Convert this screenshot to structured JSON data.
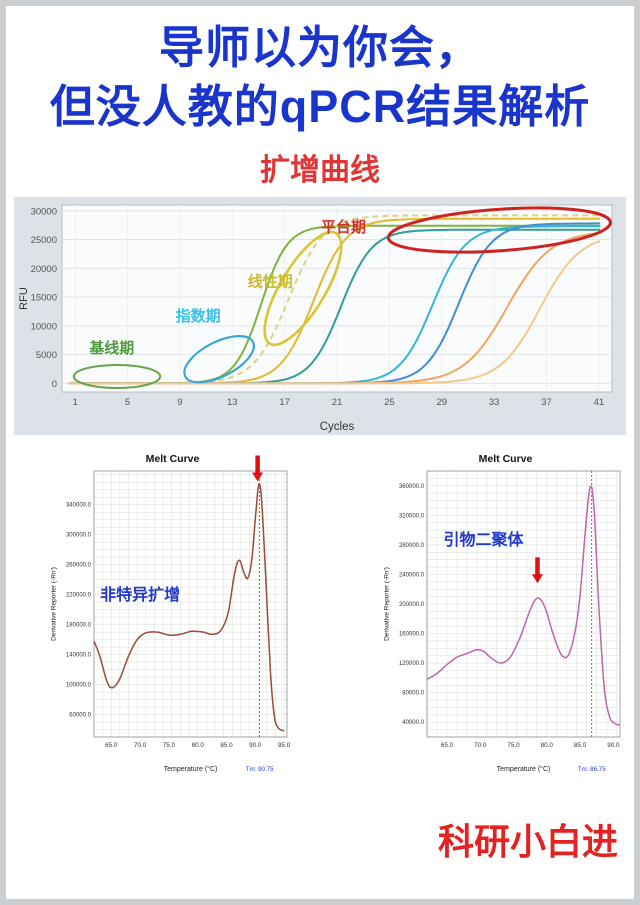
{
  "page": {
    "title_line1": "导师以为你会，",
    "title_line2": "但没人教的qPCR结果解析",
    "section_label": "扩增曲线",
    "footer_label": "科研小白进"
  },
  "colors": {
    "title_blue": "#1a35cc",
    "section_red": "#e03535",
    "footer_red": "#e42222",
    "note_blue": "#2238c8",
    "arrow_red": "#dd1111",
    "page_border": "#cbced1"
  },
  "chart_data": [
    {
      "id": "amplification",
      "type": "line",
      "title": "扩增曲线",
      "xlabel": "Cycles",
      "ylabel": "RFU",
      "xlim": [
        0,
        42
      ],
      "ylim": [
        -1500,
        31000
      ],
      "xticks": [
        1,
        5,
        9,
        13,
        17,
        21,
        25,
        29,
        33,
        37,
        41
      ],
      "yticks": [
        0,
        5000,
        10000,
        15000,
        20000,
        25000,
        30000
      ],
      "grid": true,
      "series": [
        {
          "name": "green",
          "color": "#7fb23f",
          "ct": 15.2,
          "plateau": 27400,
          "k": 1.0
        },
        {
          "name": "pale-yellow",
          "color": "#ddd37a",
          "ct": 17.3,
          "plateau": 29200,
          "k": 0.75,
          "dash": "6 4"
        },
        {
          "name": "yellow",
          "color": "#e3b92e",
          "ct": 19.2,
          "plateau": 28600,
          "k": 0.8
        },
        {
          "name": "teal",
          "color": "#2e9e96",
          "ct": 21.3,
          "plateau": 26700,
          "k": 0.85
        },
        {
          "name": "cyan",
          "color": "#35b5d8",
          "ct": 28.3,
          "plateau": 27300,
          "k": 0.8
        },
        {
          "name": "blue",
          "color": "#3f8fd2",
          "ct": 30.3,
          "plateau": 27800,
          "k": 0.8
        },
        {
          "name": "orange",
          "color": "#eda75f",
          "ct": 34.0,
          "plateau": 26500,
          "k": 0.6
        },
        {
          "name": "light-orange",
          "color": "#f2c98b",
          "ct": 36.5,
          "plateau": 26000,
          "k": 0.65
        }
      ],
      "phases": [
        {
          "label": "基线期",
          "color": "#4e9a3c",
          "text_x": 3.8,
          "text_y": 5300,
          "ellipse": {
            "cx": 4.2,
            "cy": 1200,
            "rx": 3.3,
            "ry": 2000,
            "rot": 0
          },
          "ellipse_color": "#6aa34a",
          "stroke": 2
        },
        {
          "label": "指数期",
          "color": "#38c2e8",
          "text_x": 10.4,
          "text_y": 10800,
          "ellipse": {
            "cx": 12.0,
            "cy": 4200,
            "rx": 2.9,
            "ry": 3000,
            "rot": -27
          },
          "ellipse_color": "#3aa6d6",
          "stroke": 2.2
        },
        {
          "label": "线性期",
          "color": "#c9bc2a",
          "text_x": 15.9,
          "text_y": 16800,
          "ellipse": {
            "cx": 18.4,
            "cy": 16500,
            "rx": 1.7,
            "ry": 11200,
            "rot": 31
          },
          "ellipse_color": "#d9c531",
          "stroke": 2.6
        },
        {
          "label": "平台期",
          "color": "#d93025",
          "text_x": 21.5,
          "text_y": 26300,
          "ellipse": {
            "cx": 33.4,
            "cy": 26650,
            "rx": 8.5,
            "ry": 3600,
            "rot": -4
          },
          "ellipse_color": "#cc2222",
          "stroke": 3
        }
      ]
    },
    {
      "id": "melt-left",
      "type": "line",
      "title": "Melt Curve",
      "xlabel": "Temperature (°C)",
      "ylabel": "Derivative Reporter (-Rn')",
      "xlim": [
        62,
        95.5
      ],
      "ylim": [
        30000,
        385000
      ],
      "xticks": [
        65,
        70,
        75,
        80,
        85,
        90,
        95
      ],
      "yticks": [
        60000,
        100000,
        140000,
        180000,
        220000,
        260000,
        300000,
        340000
      ],
      "grid_minor": {
        "x": 1.5,
        "y": 10000
      },
      "color": "#9a4a38",
      "tm": 90.75,
      "tm_label": "Tm: 90.75",
      "note": {
        "text": "非特异扩增",
        "x": 70.0,
        "y": 213000
      },
      "arrow": {
        "x": 90.4,
        "tip_y": 371000
      },
      "points": [
        [
          62,
          158000
        ],
        [
          63,
          138000
        ],
        [
          64.3,
          103000
        ],
        [
          65.3,
          96000
        ],
        [
          66.5,
          108000
        ],
        [
          68,
          138000
        ],
        [
          69.5,
          160000
        ],
        [
          71,
          169000
        ],
        [
          73,
          170000
        ],
        [
          75,
          166000
        ],
        [
          77,
          167000
        ],
        [
          79,
          171000
        ],
        [
          81,
          170000
        ],
        [
          82.5,
          167000
        ],
        [
          84,
          172000
        ],
        [
          85.3,
          196000
        ],
        [
          86.4,
          248000
        ],
        [
          87.2,
          266000
        ],
        [
          88,
          250000
        ],
        [
          88.7,
          242000
        ],
        [
          89.4,
          268000
        ],
        [
          90.1,
          330000
        ],
        [
          90.6,
          367000
        ],
        [
          91.1,
          345000
        ],
        [
          91.8,
          245000
        ],
        [
          92.6,
          120000
        ],
        [
          93.3,
          58000
        ],
        [
          94,
          42000
        ],
        [
          95,
          38000
        ]
      ]
    },
    {
      "id": "melt-right",
      "type": "line",
      "title": "Melt Curve",
      "xlabel": "Temperature (°C)",
      "ylabel": "Derivative Reporter (-Rn')",
      "xlim": [
        62,
        91
      ],
      "ylim": [
        20000,
        380000
      ],
      "xticks": [
        65,
        70,
        75,
        80,
        85,
        90
      ],
      "yticks": [
        40000,
        80000,
        120000,
        160000,
        200000,
        240000,
        280000,
        320000,
        360000
      ],
      "grid_minor": {
        "x": 1.5,
        "y": 10000
      },
      "color": "#c263ad",
      "tm": 86.75,
      "tm_label": "Tm: 86.75",
      "note": {
        "text": "引物二聚体",
        "x": 70.5,
        "y": 280000
      },
      "arrow": {
        "x": 78.6,
        "tip_y": 228000
      },
      "points": [
        [
          62,
          98000
        ],
        [
          63.5,
          106000
        ],
        [
          65,
          118000
        ],
        [
          66.5,
          128000
        ],
        [
          68,
          133000
        ],
        [
          69.5,
          138000
        ],
        [
          70.5,
          136000
        ],
        [
          71.5,
          128000
        ],
        [
          73,
          120000
        ],
        [
          74.5,
          128000
        ],
        [
          76,
          155000
        ],
        [
          77.5,
          192000
        ],
        [
          78.6,
          208000
        ],
        [
          79.7,
          196000
        ],
        [
          81,
          158000
        ],
        [
          82.3,
          130000
        ],
        [
          83.5,
          136000
        ],
        [
          84.8,
          195000
        ],
        [
          85.8,
          300000
        ],
        [
          86.5,
          358000
        ],
        [
          87.1,
          330000
        ],
        [
          87.8,
          200000
        ],
        [
          88.6,
          90000
        ],
        [
          89.4,
          48000
        ],
        [
          90.3,
          38000
        ],
        [
          91,
          36000
        ]
      ]
    }
  ]
}
